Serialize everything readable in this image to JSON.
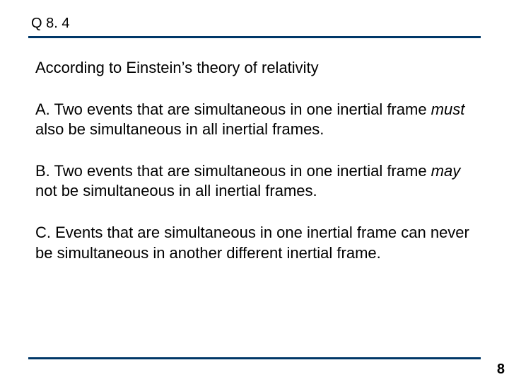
{
  "header": {
    "label": "Q 8. 4"
  },
  "stem": "According to Einstein’s theory of relativity",
  "options": {
    "a_pre": "A. Two events that are simultaneous in one inertial frame ",
    "a_em": "must",
    "a_post": " also be simultaneous in all inertial frames.",
    "b_pre": "B. Two events that are simultaneous in one inertial frame ",
    "b_em": "may",
    "b_post": " not be simultaneous in all inertial frames.",
    "c": "C. Events that are simultaneous in one inertial frame can never be simultaneous in another different inertial frame."
  },
  "page_number": "8",
  "colors": {
    "rule": "#003768",
    "text": "#000000",
    "background": "#ffffff"
  },
  "typography": {
    "header_fontsize": 20,
    "body_fontsize": 22,
    "page_number_fontsize": 20,
    "font_family": "Arial"
  }
}
